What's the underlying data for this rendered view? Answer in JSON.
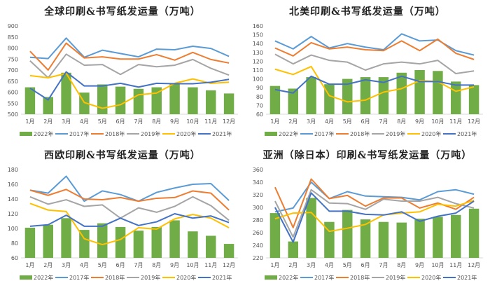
{
  "colors": {
    "2022年": "#70ad47",
    "2017年": "#5b9bd5",
    "2018年": "#ed7d31",
    "2019年": "#a5a5a5",
    "2020年": "#ffc000",
    "2021年": "#4472c4"
  },
  "chart_data": [
    {
      "type": "bar+line",
      "title": "全球印刷&书写纸发运量（万吨）",
      "categories": [
        "1月",
        "2月",
        "3月",
        "4月",
        "5月",
        "6月",
        "7月",
        "8月",
        "9月",
        "10月",
        "11月",
        "12月"
      ],
      "ylim": [
        500,
        900
      ],
      "yticks": [
        500,
        550,
        600,
        650,
        700,
        750,
        800,
        850,
        900
      ],
      "grid": false,
      "legend": "bottom",
      "bar_series": {
        "name": "2022年",
        "values": [
          622,
          578,
          688,
          598,
          635,
          625,
          615,
          622,
          640,
          622,
          608,
          594
        ]
      },
      "series": [
        {
          "name": "2017年",
          "values": [
            758,
            752,
            845,
            758,
            790,
            775,
            760,
            795,
            792,
            808,
            798,
            762
          ]
        },
        {
          "name": "2018年",
          "values": [
            785,
            700,
            822,
            755,
            760,
            750,
            750,
            770,
            745,
            780,
            748,
            732
          ]
        },
        {
          "name": "2019年",
          "values": [
            742,
            665,
            772,
            722,
            725,
            680,
            725,
            715,
            722,
            748,
            708,
            677
          ]
        },
        {
          "name": "2020年",
          "values": [
            675,
            665,
            685,
            553,
            527,
            543,
            588,
            596,
            640,
            660,
            640,
            645
          ]
        },
        {
          "name": "2021年",
          "values": [
            618,
            565,
            692,
            628,
            628,
            640,
            623,
            640,
            638,
            638,
            645,
            658
          ]
        }
      ]
    },
    {
      "type": "bar+line",
      "title": "北美印刷&书写纸发运量（万吨）",
      "categories": [
        "1月",
        "2月",
        "3月",
        "4月",
        "5月",
        "6月",
        "7月",
        "8月",
        "9月",
        "10月",
        "11月",
        "12月"
      ],
      "ylim": [
        60,
        160
      ],
      "yticks": [
        60,
        70,
        80,
        90,
        100,
        110,
        120,
        130,
        140,
        150,
        160
      ],
      "grid": false,
      "legend": "bottom",
      "bar_series": {
        "name": "2022年",
        "values": [
          92,
          89,
          102,
          94,
          100,
          102,
          102,
          107,
          110,
          109,
          97,
          93
        ]
      },
      "series": [
        {
          "name": "2017年",
          "values": [
            143,
            134,
            148,
            135,
            140,
            136,
            133,
            151,
            143,
            144,
            132,
            127
          ]
        },
        {
          "name": "2018年",
          "values": [
            135,
            126,
            141,
            134,
            136,
            133,
            132,
            143,
            132,
            145,
            129,
            122
          ]
        },
        {
          "name": "2019年",
          "values": [
            128,
            117,
            127,
            121,
            119,
            110,
            117,
            119,
            117,
            121,
            106,
            109
          ]
        },
        {
          "name": "2020年",
          "values": [
            111,
            105,
            114,
            81,
            74,
            76,
            85,
            89,
            98,
            97,
            86,
            91
          ]
        },
        {
          "name": "2021年",
          "values": [
            88,
            84,
            103,
            94,
            94,
            99,
            96,
            103,
            97,
            97,
            93,
            93
          ]
        }
      ]
    },
    {
      "type": "bar+line",
      "title": "西欧印刷&书写纸发运量（万吨）",
      "categories": [
        "1月",
        "2月",
        "3月",
        "4月",
        "5月",
        "6月",
        "7月",
        "8月",
        "9月",
        "10月",
        "11月",
        "12月"
      ],
      "ylim": [
        60,
        180
      ],
      "yticks": [
        60,
        80,
        100,
        120,
        140,
        160,
        180
      ],
      "grid": false,
      "legend": "bottom",
      "bar_series": {
        "name": "2022年",
        "values": [
          101,
          105,
          114,
          98,
          107,
          102,
          97,
          102,
          111,
          96,
          90,
          79
        ]
      },
      "series": [
        {
          "name": "2017年",
          "values": [
            152,
            148,
            171,
            137,
            151,
            146,
            137,
            149,
            155,
            160,
            161,
            138
          ]
        },
        {
          "name": "2018年",
          "values": [
            152,
            145,
            153,
            140,
            139,
            142,
            137,
            141,
            142,
            151,
            148,
            125
          ]
        },
        {
          "name": "2019年",
          "values": [
            143,
            133,
            139,
            130,
            132,
            114,
            128,
            122,
            130,
            143,
            131,
            111
          ]
        },
        {
          "name": "2020年",
          "values": [
            134,
            125,
            123,
            86,
            78,
            85,
            101,
            99,
            113,
            119,
            114,
            101
          ]
        },
        {
          "name": "2021年",
          "values": [
            103,
            105,
            118,
            103,
            103,
            114,
            104,
            109,
            120,
            114,
            117,
            108
          ]
        }
      ]
    },
    {
      "type": "bar+line",
      "title": "亚洲（除日本）印刷&书写纸发运量（万吨）",
      "categories": [
        "1月",
        "2月",
        "3月",
        "4月",
        "5月",
        "6月",
        "7月",
        "8月",
        "9月",
        "10月",
        "11月",
        "12月"
      ],
      "ylim": [
        220,
        360
      ],
      "yticks": [
        220,
        240,
        260,
        280,
        300,
        320,
        340,
        360
      ],
      "grid": false,
      "legend": "bottom",
      "bar_series": {
        "name": "2022年",
        "values": [
          291,
          246,
          315,
          277,
          296,
          281,
          277,
          276,
          282,
          285,
          288,
          298
        ]
      },
      "series": [
        {
          "name": "2017年",
          "values": [
            293,
            299,
            340,
            314,
            325,
            318,
            317,
            316,
            312,
            325,
            328,
            321
          ]
        },
        {
          "name": "2018年",
          "values": [
            332,
            268,
            345,
            314,
            319,
            302,
            315,
            315,
            299,
            307,
            297,
            316
          ]
        },
        {
          "name": "2019年",
          "values": [
            310,
            253,
            328,
            307,
            306,
            297,
            313,
            310,
            310,
            316,
            306,
            299
          ]
        },
        {
          "name": "2020年",
          "values": [
            282,
            291,
            292,
            262,
            267,
            273,
            288,
            291,
            293,
            305,
            302,
            311
          ]
        },
        {
          "name": "2021年",
          "values": [
            300,
            245,
            323,
            294,
            294,
            289,
            288,
            293,
            278,
            286,
            291,
            310
          ]
        }
      ]
    }
  ]
}
